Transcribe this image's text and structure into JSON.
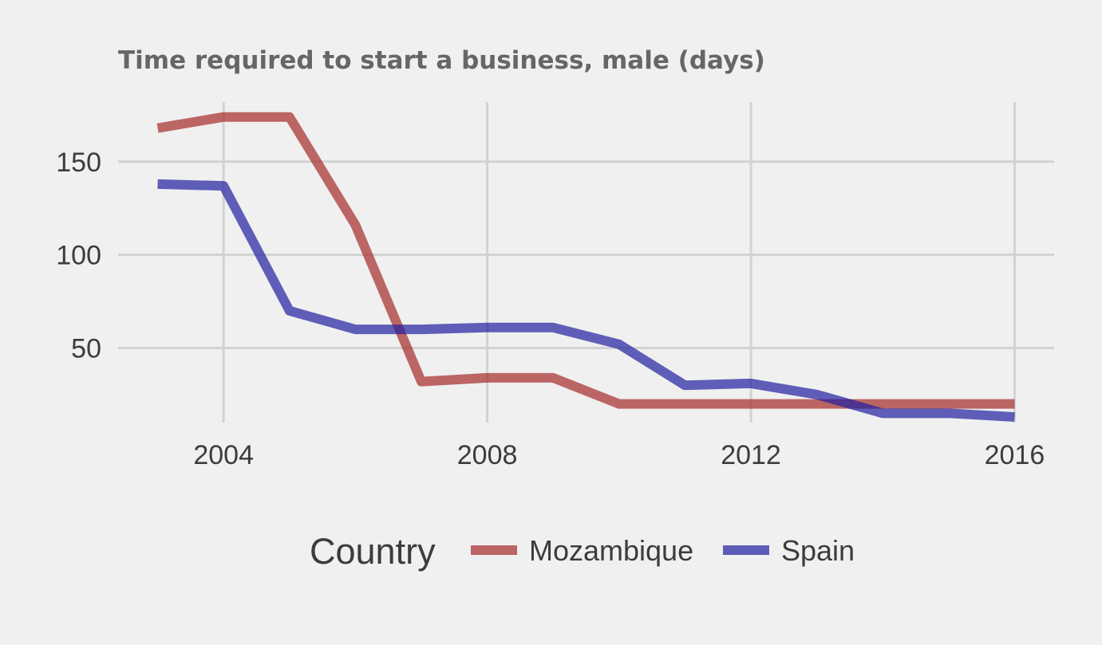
{
  "chart_data": {
    "type": "line",
    "title": "Time required to start a business, male (days)",
    "xlabel": "",
    "ylabel": "",
    "x": [
      2003,
      2004,
      2005,
      2006,
      2007,
      2008,
      2009,
      2010,
      2011,
      2012,
      2013,
      2014,
      2015,
      2016
    ],
    "xlim": [
      2002.4,
      2016.6
    ],
    "ylim": [
      10,
      182
    ],
    "x_ticks": [
      2004,
      2008,
      2012,
      2016
    ],
    "y_ticks": [
      50,
      100,
      150
    ],
    "grid": true,
    "legend": {
      "title": "Country",
      "position": "bottom"
    },
    "series": [
      {
        "name": "Mozambique",
        "color": "#a52a2a",
        "values": [
          168,
          174,
          174,
          116,
          32,
          34,
          34,
          20,
          20,
          20,
          20,
          20,
          20,
          20
        ]
      },
      {
        "name": "Spain",
        "color": "#1f1f9f",
        "values": [
          138,
          137,
          70,
          60,
          60,
          61,
          61,
          52,
          30,
          31,
          25,
          15,
          15,
          13
        ]
      }
    ]
  }
}
